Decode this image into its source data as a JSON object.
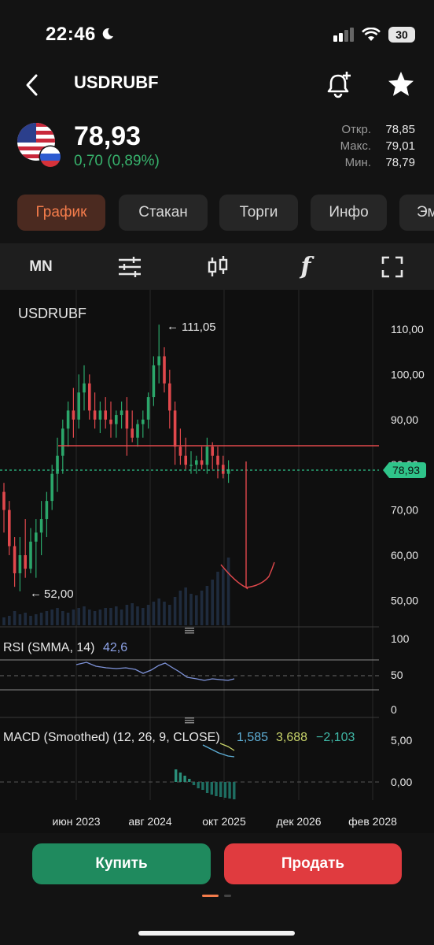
{
  "status": {
    "time": "22:46",
    "battery": "30"
  },
  "header": {
    "title": "USDRUBF"
  },
  "quote": {
    "price": "78,93",
    "change": "0,70 (0,89%)",
    "stats": [
      {
        "label": "Откр.",
        "value": "78,85"
      },
      {
        "label": "Макс.",
        "value": "79,01"
      },
      {
        "label": "Мин.",
        "value": "78,79"
      }
    ]
  },
  "tabs": [
    {
      "label": "График",
      "active": true
    },
    {
      "label": "Стакан"
    },
    {
      "label": "Торги"
    },
    {
      "label": "Инфо"
    },
    {
      "label": "Эм"
    }
  ],
  "toolbar": {
    "timeframe": "MN"
  },
  "chart": {
    "symbol": "USDRUBF",
    "max_label": "111,05",
    "min_label": "52,00",
    "current_price": "78,93",
    "y_ticks": [
      "110,00",
      "100,00",
      "90,00",
      "80,00",
      "70,00",
      "60,00",
      "50,00"
    ],
    "rsi": {
      "label": "RSI (SMMA, 14)",
      "value": "42,6",
      "ticks": [
        "100",
        "50",
        "0"
      ]
    },
    "macd": {
      "label": "MACD (Smoothed) (12, 26, 9, CLOSE)",
      "v1": "1,585",
      "v2": "3,688",
      "v3": "−2,103",
      "ticks": [
        "5,00",
        "0,00"
      ]
    },
    "x_labels": [
      "июн 2023",
      "авг 2024",
      "окт 2025",
      "дек 2026",
      "фев 2028"
    ]
  },
  "actions": {
    "buy": "Купить",
    "sell": "Продать"
  },
  "colors": {
    "up": "#2ba66a",
    "down": "#e0484c",
    "accent": "#f47c4b",
    "price_line": "#2fc48a"
  }
}
